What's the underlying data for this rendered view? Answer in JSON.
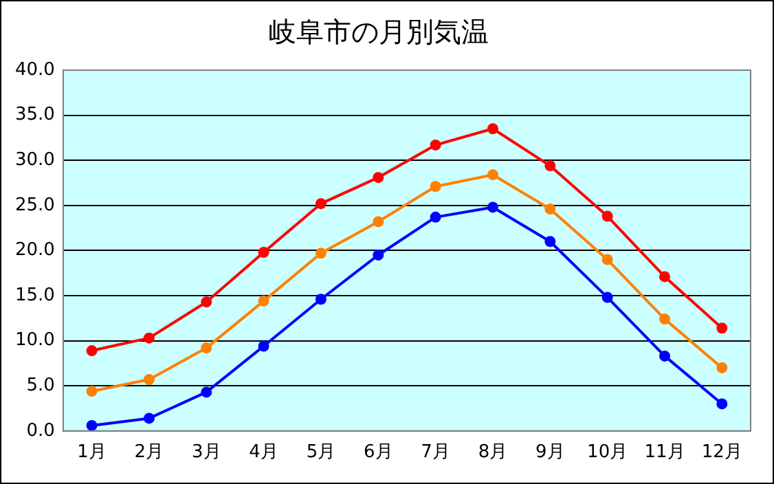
{
  "chart_data": {
    "type": "line",
    "title": "岐阜市の月別気温",
    "categories": [
      "1月",
      "2月",
      "3月",
      "4月",
      "5月",
      "6月",
      "7月",
      "8月",
      "9月",
      "10月",
      "11月",
      "12月"
    ],
    "series": [
      {
        "color": "#ff0000",
        "values": [
          8.9,
          10.3,
          14.3,
          19.8,
          25.2,
          28.1,
          31.7,
          33.5,
          29.4,
          23.8,
          17.1,
          11.4
        ]
      },
      {
        "color": "#ff8000",
        "values": [
          4.4,
          5.7,
          9.2,
          14.4,
          19.7,
          23.2,
          27.1,
          28.4,
          24.6,
          19.0,
          12.4,
          7.0
        ]
      },
      {
        "color": "#0000ff",
        "values": [
          0.6,
          1.4,
          4.3,
          9.4,
          14.6,
          19.5,
          23.7,
          24.8,
          21.0,
          14.8,
          8.3,
          3.0
        ]
      }
    ],
    "ylim": [
      0,
      40
    ],
    "yticks": [
      {
        "value": 0,
        "label": "0.0"
      },
      {
        "value": 5,
        "label": "5.0"
      },
      {
        "value": 10,
        "label": "10.0"
      },
      {
        "value": 15,
        "label": "15.0"
      },
      {
        "value": 20,
        "label": "20.0"
      },
      {
        "value": 25,
        "label": "25.0"
      },
      {
        "value": 30,
        "label": "30.0"
      },
      {
        "value": 35,
        "label": "35.0"
      },
      {
        "value": 40,
        "label": "40.0"
      }
    ],
    "grid": "y",
    "legend": false,
    "marker": "circle",
    "line_style": "solid"
  }
}
